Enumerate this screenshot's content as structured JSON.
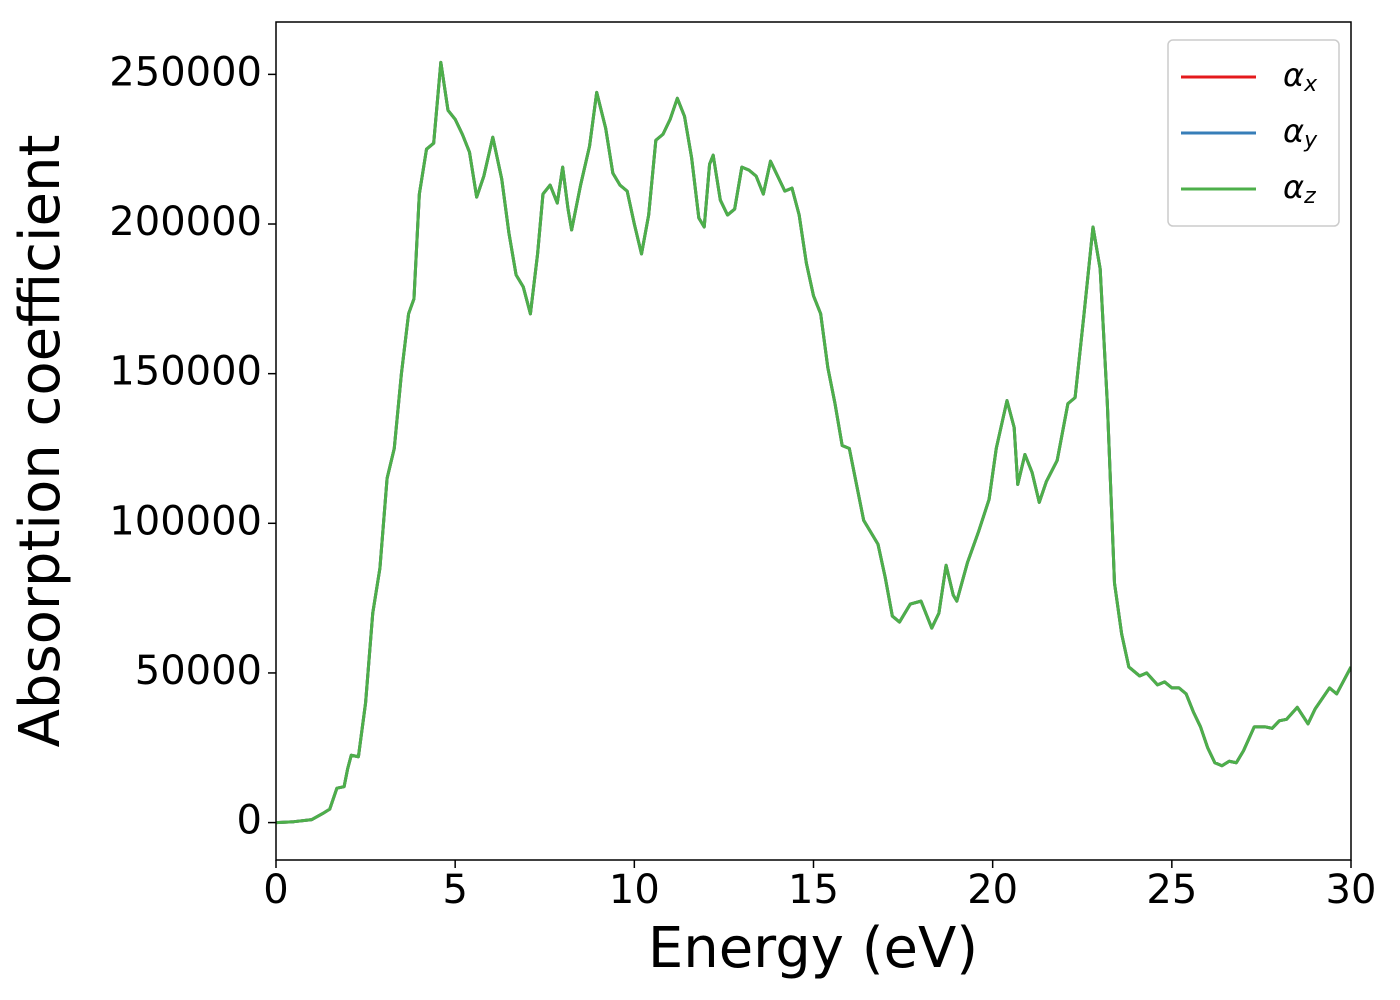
{
  "chart_data": {
    "type": "line",
    "xlabel": "Energy (eV)",
    "ylabel": "Absorption coefficient",
    "x": [
      0,
      0.5,
      1.0,
      1.3,
      1.5,
      1.6,
      1.7,
      1.9,
      2.0,
      2.1,
      2.3,
      2.5,
      2.7,
      2.9,
      3.1,
      3.3,
      3.5,
      3.7,
      3.85,
      4.0,
      4.2,
      4.4,
      4.6,
      4.8,
      5.0,
      5.2,
      5.4,
      5.6,
      5.8,
      6.05,
      6.3,
      6.5,
      6.7,
      6.9,
      7.1,
      7.3,
      7.45,
      7.65,
      7.85,
      8.0,
      8.15,
      8.25,
      8.5,
      8.75,
      8.95,
      9.2,
      9.4,
      9.6,
      9.8,
      10.0,
      10.2,
      10.4,
      10.6,
      10.8,
      11.0,
      11.2,
      11.4,
      11.6,
      11.8,
      11.95,
      12.1,
      12.2,
      12.4,
      12.6,
      12.8,
      13.0,
      13.2,
      13.4,
      13.6,
      13.8,
      14.0,
      14.2,
      14.4,
      14.6,
      14.8,
      15.0,
      15.2,
      15.4,
      15.6,
      15.8,
      16.0,
      16.2,
      16.4,
      16.6,
      16.8,
      17.0,
      17.2,
      17.4,
      17.7,
      18.0,
      18.3,
      18.5,
      18.7,
      18.9,
      19.0,
      19.3,
      19.6,
      19.9,
      20.1,
      20.4,
      20.6,
      20.7,
      20.9,
      21.1,
      21.3,
      21.5,
      21.8,
      22.1,
      22.3,
      22.55,
      22.8,
      23.0,
      23.2,
      23.4,
      23.6,
      23.8,
      24.1,
      24.3,
      24.6,
      24.8,
      25.0,
      25.2,
      25.4,
      25.6,
      25.8,
      26.0,
      26.2,
      26.4,
      26.6,
      26.8,
      27.0,
      27.3,
      27.6,
      27.8,
      28.0,
      28.2,
      28.5,
      28.8,
      29.0,
      29.4,
      29.6,
      30.0
    ],
    "series": [
      {
        "name": "αx",
        "color": "#e41a1c",
        "values": [
          0,
          300,
          1000,
          3000,
          4500,
          8000,
          11500,
          12000,
          18000,
          22500,
          22000,
          40000,
          70000,
          85000,
          115000,
          125000,
          150000,
          170000,
          175000,
          210000,
          225000,
          227000,
          254000,
          238000,
          235000,
          230000,
          224000,
          209000,
          216000,
          229000,
          215000,
          197000,
          183000,
          179000,
          170000,
          190000,
          210000,
          213000,
          207000,
          219000,
          205000,
          198000,
          213000,
          226000,
          244000,
          232000,
          217000,
          213000,
          211000,
          200000,
          190000,
          203000,
          228000,
          230000,
          235000,
          242000,
          236000,
          222000,
          202000,
          199000,
          220000,
          223000,
          208000,
          203000,
          205000,
          219000,
          218000,
          216000,
          210000,
          221000,
          216000,
          211000,
          212000,
          203000,
          187000,
          176000,
          170000,
          152000,
          140000,
          126000,
          125000,
          113000,
          101000,
          97000,
          93000,
          82000,
          69000,
          67000,
          73000,
          74000,
          65000,
          70000,
          86000,
          76000,
          74000,
          87000,
          97000,
          108000,
          125000,
          141000,
          132000,
          113000,
          123000,
          117000,
          107000,
          114000,
          121000,
          140000,
          142000,
          170000,
          199000,
          185000,
          140000,
          80000,
          63000,
          52000,
          49000,
          50000,
          46000,
          47000,
          45000,
          45000,
          43000,
          37000,
          32000,
          25000,
          20000,
          19000,
          20500,
          20000,
          24000,
          32000,
          32000,
          31500,
          34000,
          34500,
          38500,
          33000,
          38000,
          45000,
          43000,
          52000
        ]
      },
      {
        "name": "αy",
        "color": "#377eb8",
        "values": [
          0,
          300,
          1000,
          3000,
          4500,
          8000,
          11500,
          12000,
          18000,
          22500,
          22000,
          40000,
          70000,
          85000,
          115000,
          125000,
          150000,
          170000,
          175000,
          210000,
          225000,
          227000,
          254000,
          238000,
          235000,
          230000,
          224000,
          209000,
          216000,
          229000,
          215000,
          197000,
          183000,
          179000,
          170000,
          190000,
          210000,
          213000,
          207000,
          219000,
          205000,
          198000,
          213000,
          226000,
          244000,
          232000,
          217000,
          213000,
          211000,
          200000,
          190000,
          203000,
          228000,
          230000,
          235000,
          242000,
          236000,
          222000,
          202000,
          199000,
          220000,
          223000,
          208000,
          203000,
          205000,
          219000,
          218000,
          216000,
          210000,
          221000,
          216000,
          211000,
          212000,
          203000,
          187000,
          176000,
          170000,
          152000,
          140000,
          126000,
          125000,
          113000,
          101000,
          97000,
          93000,
          82000,
          69000,
          67000,
          73000,
          74000,
          65000,
          70000,
          86000,
          76000,
          74000,
          87000,
          97000,
          108000,
          125000,
          141000,
          132000,
          113000,
          123000,
          117000,
          107000,
          114000,
          121000,
          140000,
          142000,
          170000,
          199000,
          185000,
          140000,
          80000,
          63000,
          52000,
          49000,
          50000,
          46000,
          47000,
          45000,
          45000,
          43000,
          37000,
          32000,
          25000,
          20000,
          19000,
          20500,
          20000,
          24000,
          32000,
          32000,
          31500,
          34000,
          34500,
          38500,
          33000,
          38000,
          45000,
          43000,
          52000
        ]
      },
      {
        "name": "αz",
        "color": "#4daf4a",
        "values": [
          0,
          300,
          1000,
          3000,
          4500,
          8000,
          11500,
          12000,
          18000,
          22500,
          22000,
          40000,
          70000,
          85000,
          115000,
          125000,
          150000,
          170000,
          175000,
          210000,
          225000,
          227000,
          254000,
          238000,
          235000,
          230000,
          224000,
          209000,
          216000,
          229000,
          215000,
          197000,
          183000,
          179000,
          170000,
          190000,
          210000,
          213000,
          207000,
          219000,
          205000,
          198000,
          213000,
          226000,
          244000,
          232000,
          217000,
          213000,
          211000,
          200000,
          190000,
          203000,
          228000,
          230000,
          235000,
          242000,
          236000,
          222000,
          202000,
          199000,
          220000,
          223000,
          208000,
          203000,
          205000,
          219000,
          218000,
          216000,
          210000,
          221000,
          216000,
          211000,
          212000,
          203000,
          187000,
          176000,
          170000,
          152000,
          140000,
          126000,
          125000,
          113000,
          101000,
          97000,
          93000,
          82000,
          69000,
          67000,
          73000,
          74000,
          65000,
          70000,
          86000,
          76000,
          74000,
          87000,
          97000,
          108000,
          125000,
          141000,
          132000,
          113000,
          123000,
          117000,
          107000,
          114000,
          121000,
          140000,
          142000,
          170000,
          199000,
          185000,
          140000,
          80000,
          63000,
          52000,
          49000,
          50000,
          46000,
          47000,
          45000,
          45000,
          43000,
          37000,
          32000,
          25000,
          20000,
          19000,
          20500,
          20000,
          24000,
          32000,
          32000,
          31500,
          34000,
          34500,
          38500,
          33000,
          38000,
          45000,
          43000,
          52000
        ]
      }
    ],
    "xlim": [
      0,
      30
    ],
    "xticks": [
      0,
      5,
      10,
      15,
      20,
      25,
      30
    ],
    "ylim": [
      -12500,
      267500
    ],
    "yticks": [
      0,
      50000,
      100000,
      150000,
      200000,
      250000
    ],
    "grid": false,
    "legend": "upper right"
  }
}
